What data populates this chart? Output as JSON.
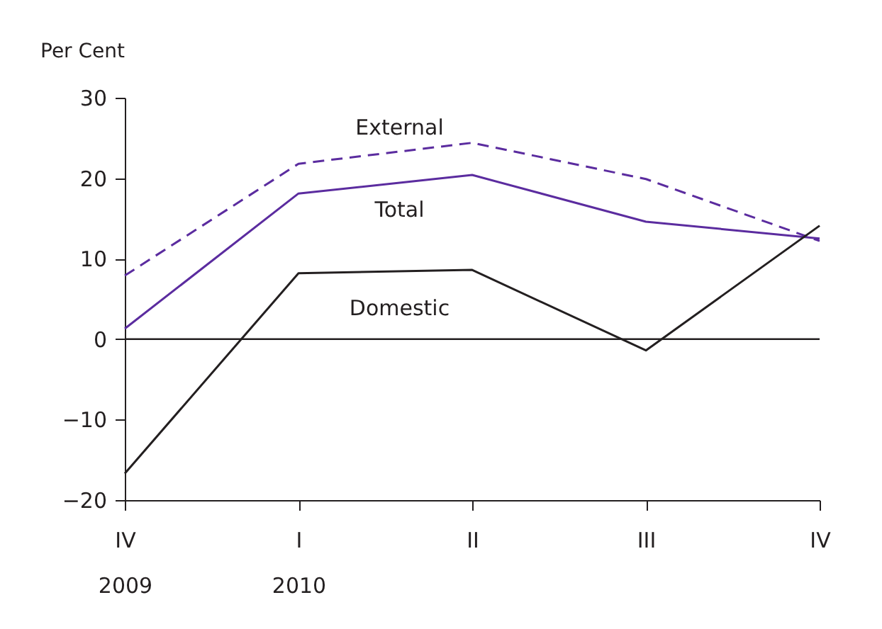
{
  "chart_data": {
    "type": "line",
    "ylabel": "Per Cent",
    "categories": [
      "IV\n2009",
      "I\n2010",
      "II",
      "III",
      "IV"
    ],
    "series": [
      {
        "name": "External",
        "color": "#5b2c9f",
        "line_style": "dashed",
        "values": [
          7.9,
          21.8,
          24.4,
          19.9,
          12.2
        ]
      },
      {
        "name": "Total",
        "color": "#5b2c9f",
        "line_style": "solid",
        "values": [
          1.3,
          18.1,
          20.4,
          14.6,
          12.5
        ]
      },
      {
        "name": "Domestic",
        "color": "#231f20",
        "line_style": "solid",
        "values": [
          -16.7,
          8.2,
          8.6,
          -1.4,
          14.1
        ]
      }
    ],
    "ylim": [
      -20,
      30
    ],
    "yticks": [
      -20,
      -10,
      0,
      10,
      20,
      30
    ],
    "ref_lines": [
      {
        "axis": "y",
        "value": 0,
        "color": "#231f20"
      }
    ],
    "grid": false,
    "marker": "none"
  }
}
